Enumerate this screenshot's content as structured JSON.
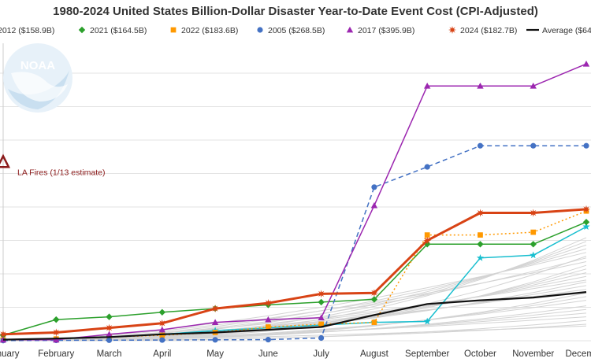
{
  "chart_data": {
    "type": "line",
    "title": "1980-2024 United States Billion-Dollar Disaster Year-to-Date Event Cost (CPI-Adjusted)",
    "categories": [
      "January",
      "February",
      "March",
      "April",
      "May",
      "June",
      "July",
      "August",
      "September",
      "October",
      "November",
      "December"
    ],
    "ylabel": "",
    "xlabel": "",
    "grid": true,
    "legend_position": "top",
    "series": [
      {
        "name": "2012 ($158.9B)",
        "color": "#17becf",
        "marker": "star",
        "dash": "solid",
        "width": 1.5,
        "values": [
          0.5,
          1.0,
          2.0,
          3.5,
          5.5,
          7.0,
          8.5,
          10.0,
          10.5,
          45.0,
          46.5,
          62.0
        ]
      },
      {
        "name": "2021 ($164.5B)",
        "color": "#2ca02c",
        "marker": "diamond",
        "dash": "solid",
        "width": 1.5,
        "values": [
          3.0,
          11.5,
          13.0,
          15.5,
          17.5,
          19.5,
          21.0,
          22.5,
          52.5,
          52.5,
          52.5,
          64.5
        ]
      },
      {
        "name": "2022 ($183.6B)",
        "color": "#ff9900",
        "marker": "square",
        "dash": "dot",
        "width": 1.5,
        "values": [
          0.5,
          1.0,
          2.0,
          3.0,
          4.5,
          7.5,
          9.0,
          10.0,
          57.5,
          57.5,
          59.0,
          70.5
        ]
      },
      {
        "name": "2005 ($268.5B)",
        "color": "#4472c4",
        "marker": "circle",
        "dash": "dash",
        "width": 1.5,
        "values": [
          0.1,
          0.2,
          0.3,
          0.4,
          0.5,
          0.6,
          1.5,
          83.5,
          94.5,
          106.0,
          106.0,
          106.0
        ]
      },
      {
        "name": "2017 ($395.9B)",
        "color": "#9c27b0",
        "marker": "triangle",
        "dash": "solid",
        "width": 1.5,
        "values": [
          0.5,
          0.5,
          3.5,
          6.0,
          10.0,
          11.5,
          12.5,
          73.5,
          138.5,
          138.5,
          138.5,
          150.5
        ]
      },
      {
        "name": "2024 ($182.7B)",
        "color": "#d84315",
        "marker": "asterisk",
        "dash": "solid",
        "width": 3,
        "values": [
          3.5,
          4.5,
          7.0,
          9.5,
          17.5,
          20.5,
          25.5,
          26.0,
          54.5,
          69.5,
          69.5,
          71.5
        ]
      },
      {
        "name": "Average ($64",
        "color": "#111111",
        "marker": "none",
        "dash": "solid",
        "width": 2.2,
        "values": [
          0.6,
          1.2,
          2.0,
          3.5,
          4.5,
          6.0,
          7.5,
          14.0,
          20.0,
          22.0,
          23.5,
          26.5
        ]
      }
    ],
    "annotations": [
      {
        "text": "LA Fires (1/13 estimate)",
        "category": "January",
        "value": 97,
        "marker": "triangle",
        "color": "#8b1a1a"
      }
    ],
    "ylim": [
      0,
      160
    ]
  }
}
